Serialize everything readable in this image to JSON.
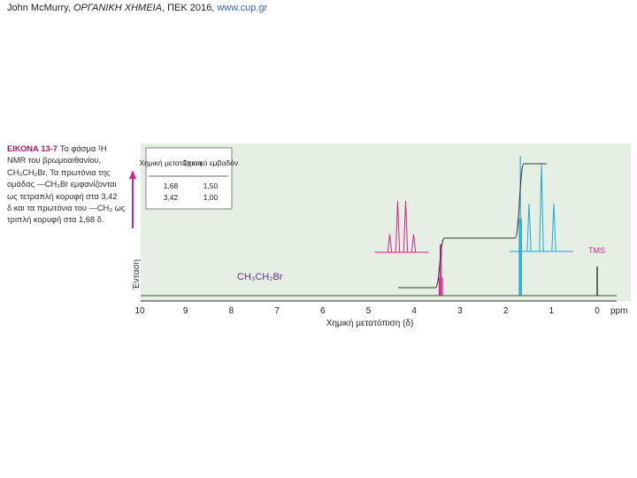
{
  "credit": {
    "prefix": "John McMurry, ",
    "title": "ΟΡΓΑΝΙΚΗ ΧΗΜΕΙΑ",
    "suffix": ", ΠΕΚ 2016, ",
    "url": "www.cup.gr"
  },
  "caption": {
    "label": "ΕΙΚΟΝΑ 13-7",
    "lines": [
      "Το φάσμα ¹H",
      "NMR του βρωμοαιθανίου,",
      "CH₃CH₂Br. Τα πρωτόνια της",
      "ομάδας —CH₂Br εμφανίζονται",
      "ως τετραπλή κορυφή στα 3,42",
      "δ και τα πρωτόνια του —CH₃ ως",
      "τριπλή κορυφή στα 1,68 δ."
    ]
  },
  "colors": {
    "magenta": "#d4238a",
    "cyan": "#1aa6d6",
    "panel": "#e6efe4",
    "integral": "#333333"
  },
  "chart_data": {
    "type": "line",
    "xlabel": "Χημική μετατόπιση (δ)",
    "ylabel": "Ένταση",
    "x_unit": "ppm",
    "xlim": [
      10,
      -0.3
    ],
    "x_reversed": true,
    "x_ticks": [
      "10",
      "9",
      "8",
      "7",
      "6",
      "5",
      "4",
      "3",
      "2",
      "1",
      "0"
    ],
    "molecule": "CH₃CH₂Br",
    "tms_label": "TMS",
    "peaks": [
      {
        "group": "CH2Br",
        "shift": 3.42,
        "multiplicity": "quartet",
        "relative_intensities": [
          0.35,
          1,
          1,
          0.35
        ],
        "color": "magenta"
      },
      {
        "group": "CH3",
        "shift": 1.68,
        "multiplicity": "triplet",
        "relative_intensities": [
          0.55,
          1,
          0.55
        ],
        "color": "cyan"
      },
      {
        "group": "TMS",
        "shift": 0.0,
        "multiplicity": "singlet",
        "color": "black"
      }
    ],
    "table": {
      "headers": [
        "Χημική μετατόπιση",
        "Σχετικό εμβαδόν"
      ],
      "rows": [
        [
          "1,68",
          "1,50"
        ],
        [
          "3,42",
          "1,00"
        ]
      ]
    },
    "integral_steps": [
      {
        "shift": 3.42,
        "relative_area": 1.0
      },
      {
        "shift": 1.68,
        "relative_area": 1.5
      }
    ],
    "grid": false
  }
}
